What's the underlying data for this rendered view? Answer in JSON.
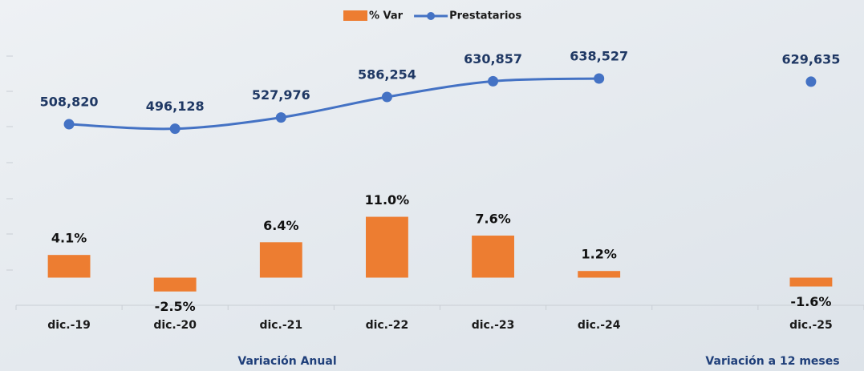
{
  "chart_data": {
    "type": "combo",
    "categories": [
      "dic.-19",
      "dic.-20",
      "dic.-21",
      "dic.-22",
      "dic.-23",
      "dic.-24",
      null,
      "dic.-25"
    ],
    "series": [
      {
        "name": "% Var",
        "type": "bar",
        "color": "#ed7d31",
        "values": [
          4.1,
          -2.5,
          6.4,
          11.0,
          7.6,
          1.2,
          null,
          -1.6
        ],
        "value_labels": [
          "4.1%",
          "-2.5%",
          "6.4%",
          "11.0%",
          "7.6%",
          "1.2%",
          null,
          "-1.6%"
        ]
      },
      {
        "name": "Prestatarios",
        "type": "line",
        "axis": "y2",
        "color": "#4472c4",
        "values": [
          508820,
          496128,
          527976,
          586254,
          630857,
          638527,
          null,
          629635
        ],
        "value_labels": [
          "508,820",
          "496,128",
          "527,976",
          "586,254",
          "630,857",
          "638,527",
          null,
          "629,635"
        ]
      }
    ],
    "ylim": [
      -5,
      41.5
    ],
    "y2lim": [
      -5000,
      725000
    ],
    "annotations": [
      "Variación  Anual",
      "Variación  a 12 meses"
    ]
  }
}
